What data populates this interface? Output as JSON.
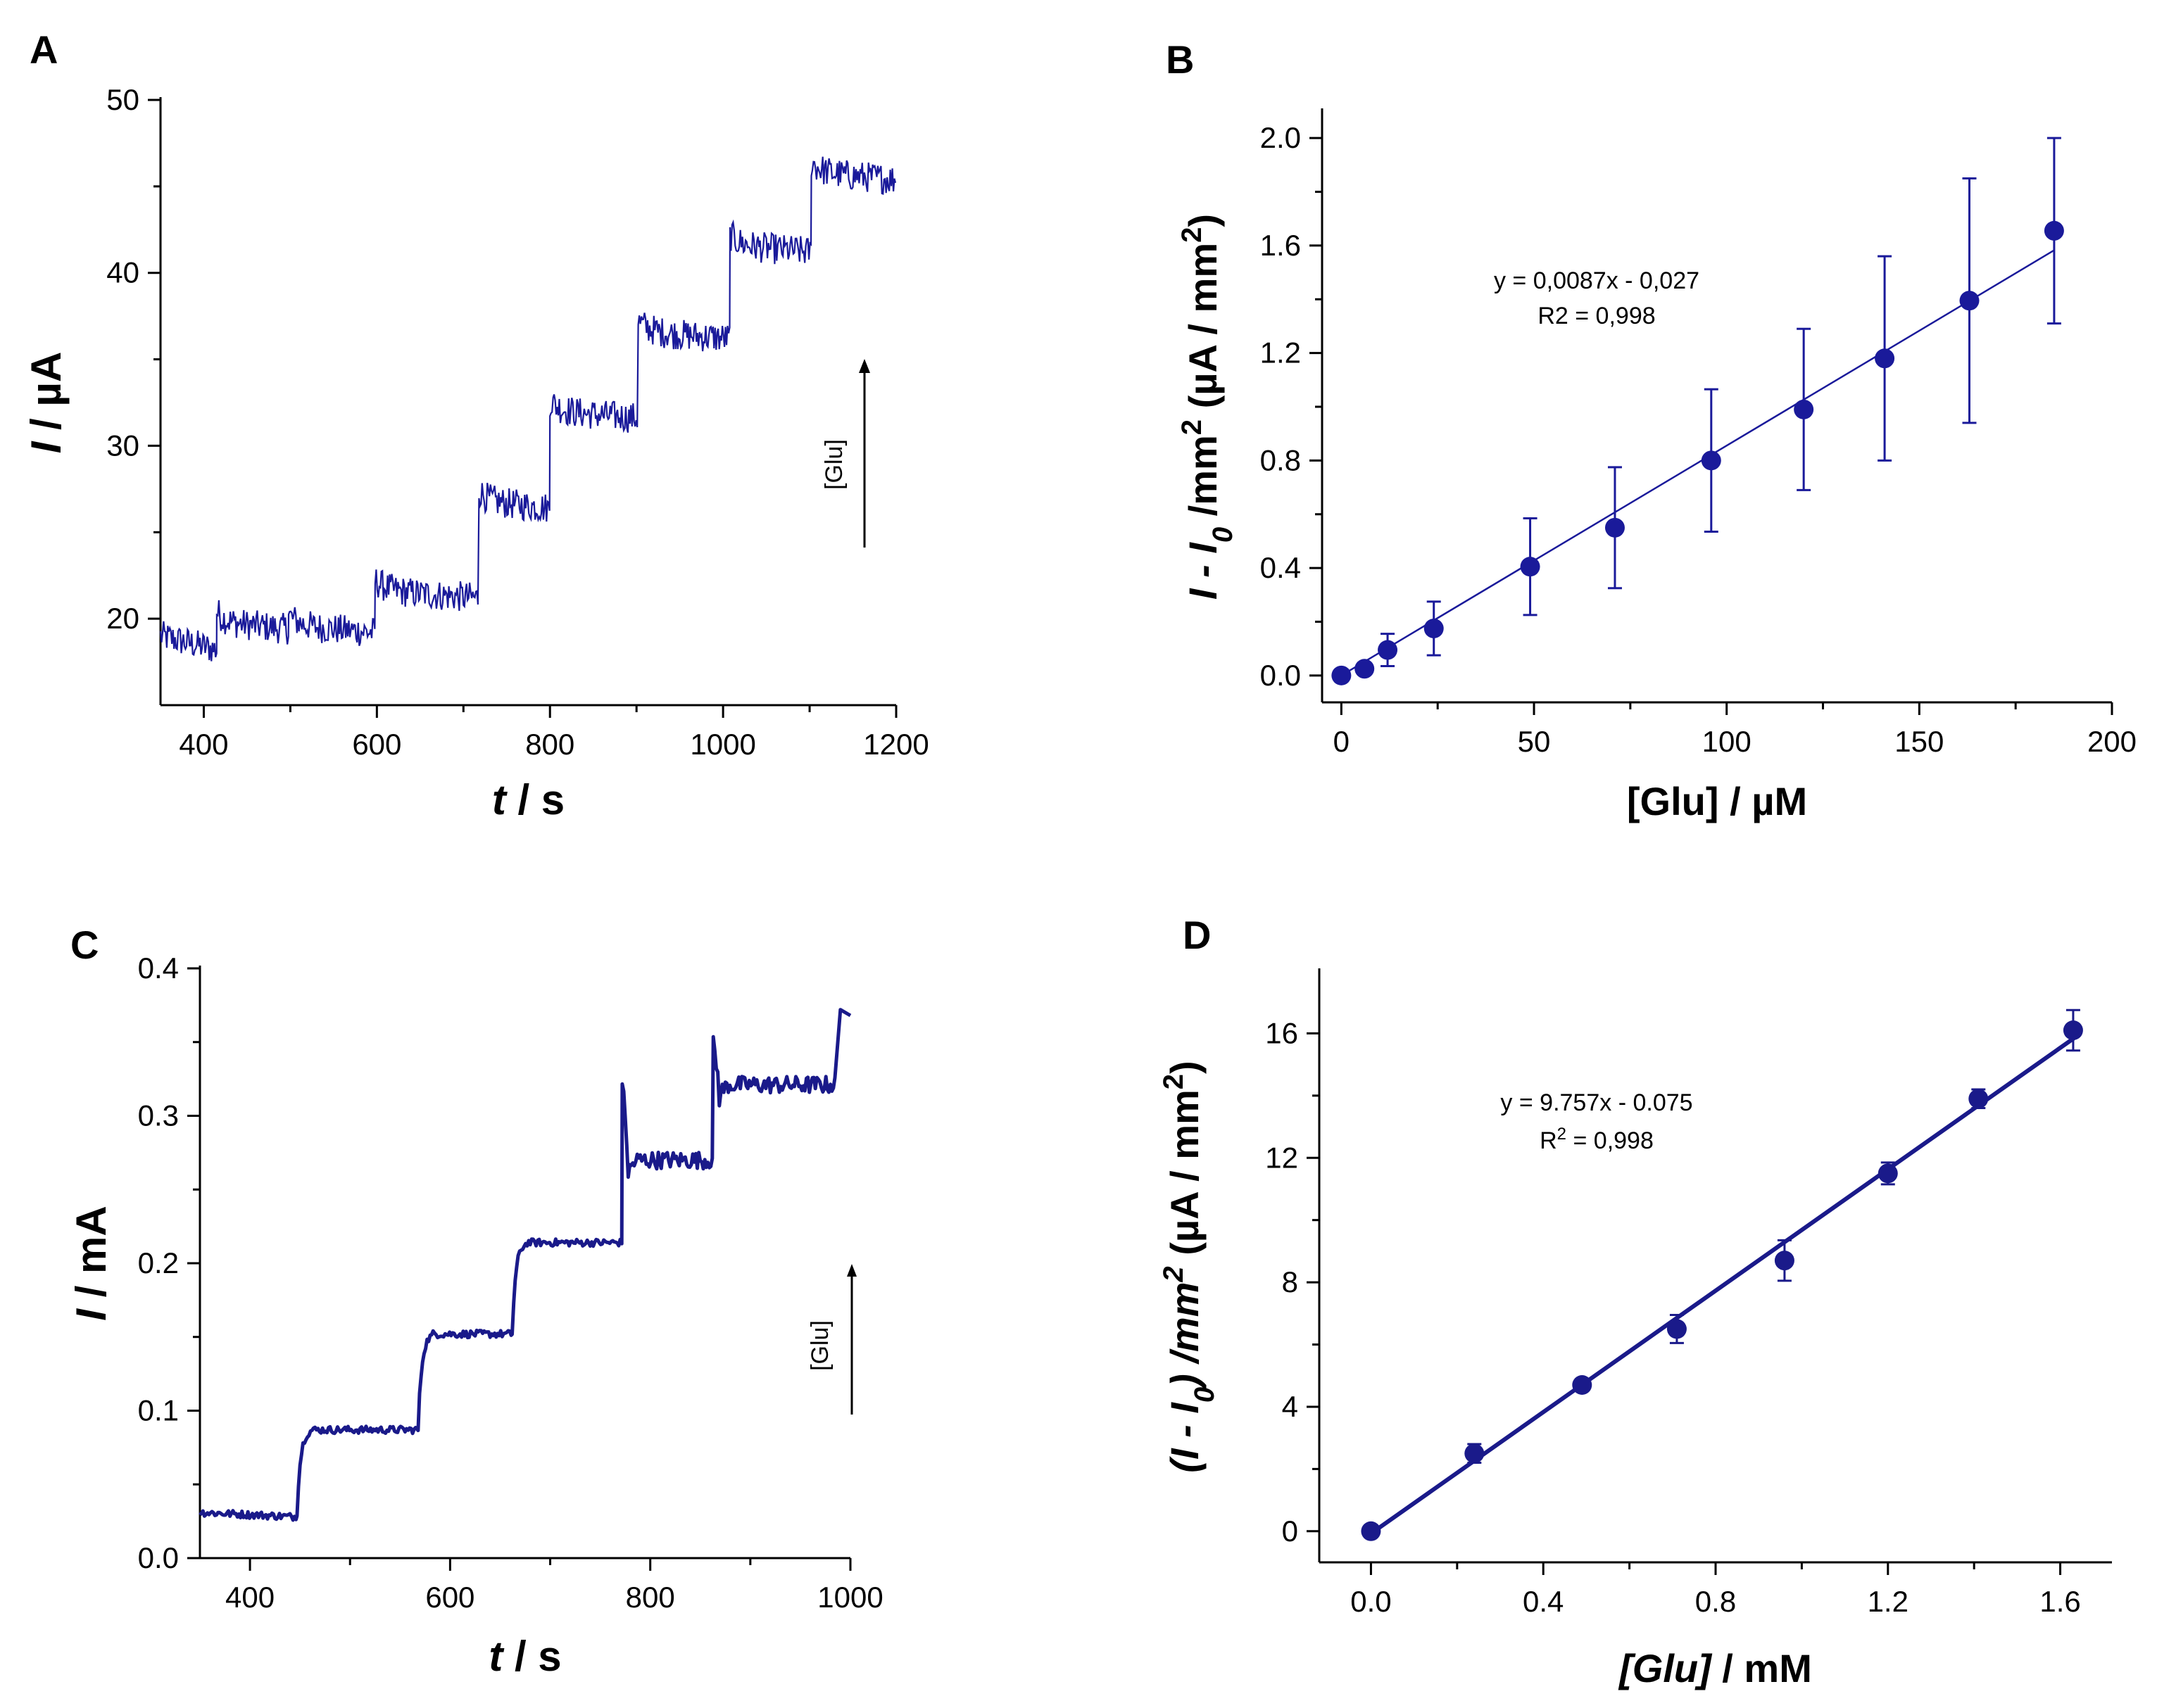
{
  "chart_data": [
    {
      "panel": "A",
      "type": "line",
      "xlabel_italic": "t",
      "xlabel_rest": " / s",
      "ylabel_italic": "I",
      "ylabel_rest": " / µA",
      "xlim": [
        350,
        1200
      ],
      "ylim": [
        15,
        50
      ],
      "xticks": [
        400,
        600,
        800,
        1000,
        1200
      ],
      "yticks": [
        20,
        30,
        40,
        50
      ],
      "color": "#1a1a9a",
      "arrow_label": "[Glu]",
      "steps": [
        {
          "t": 350,
          "level": 19.0
        },
        {
          "t": 415,
          "level": 19.8
        },
        {
          "t": 498,
          "level": 19.6
        },
        {
          "t": 598,
          "level": 21.6
        },
        {
          "t": 718,
          "level": 26.8
        },
        {
          "t": 800,
          "level": 32.0
        },
        {
          "t": 902,
          "level": 36.6
        },
        {
          "t": 1008,
          "level": 41.6
        },
        {
          "t": 1102,
          "level": 45.8
        },
        {
          "t": 1200,
          "level": 45.8
        }
      ]
    },
    {
      "panel": "B",
      "type": "scatter",
      "xlabel": "[Glu] / µM",
      "ylabel_html": "I - I0 /mm2 (µA / mm2)",
      "xlim": [
        -5,
        200
      ],
      "ylim": [
        -0.1,
        2.1
      ],
      "xticks": [
        0,
        50,
        100,
        150,
        200
      ],
      "yticks": [
        0.0,
        0.4,
        0.8,
        1.2,
        1.6,
        2.0
      ],
      "ytick_labels": [
        "0.0",
        "0.4",
        "0.8",
        "1.2",
        "1.6",
        "2.0"
      ],
      "color": "#1a1a9a",
      "points": [
        {
          "x": 0,
          "y": 0.0,
          "err": 0.0
        },
        {
          "x": 6,
          "y": 0.025,
          "err": 0.02
        },
        {
          "x": 12,
          "y": 0.095,
          "err": 0.06
        },
        {
          "x": 24,
          "y": 0.175,
          "err": 0.1
        },
        {
          "x": 49,
          "y": 0.405,
          "err": 0.18
        },
        {
          "x": 71,
          "y": 0.55,
          "err": 0.225
        },
        {
          "x": 96,
          "y": 0.8,
          "err": 0.265
        },
        {
          "x": 120,
          "y": 0.99,
          "err": 0.3
        },
        {
          "x": 141,
          "y": 1.18,
          "err": 0.38
        },
        {
          "x": 163,
          "y": 1.395,
          "err": 0.455
        },
        {
          "x": 185,
          "y": 1.655,
          "err": 0.345
        }
      ],
      "fit": {
        "slope": 0.0087,
        "intercept": -0.027,
        "x_start": 0,
        "x_end": 185
      },
      "equation": "y = 0,0087x - 0,027",
      "r2_text": "R2 = 0,998"
    },
    {
      "panel": "C",
      "type": "line",
      "xlabel_italic": "t",
      "xlabel_rest": " / s",
      "ylabel_italic": "I",
      "ylabel_rest": " / mA",
      "xlim": [
        350,
        1000
      ],
      "ylim": [
        0.0,
        0.4
      ],
      "xticks": [
        400,
        600,
        800,
        1000
      ],
      "yticks": [
        0.0,
        0.1,
        0.2,
        0.3,
        0.4
      ],
      "ytick_labels": [
        "0.0",
        "0.1",
        "0.2",
        "0.3",
        "0.4"
      ],
      "color": "#1a1a8a",
      "arrow_label": "[Glu]",
      "steps": [
        {
          "t": 350,
          "level": 0.031,
          "spike": 0
        },
        {
          "t": 447,
          "level": 0.087,
          "spike": 0
        },
        {
          "t": 568,
          "level": 0.152,
          "spike": 0
        },
        {
          "t": 662,
          "level": 0.214,
          "spike": 0
        },
        {
          "t": 772,
          "level": 0.27,
          "spike": 0.325
        },
        {
          "t": 863,
          "level": 0.321,
          "spike": 0.348
        },
        {
          "t": 985,
          "level": 0.37,
          "spike": 0
        }
      ]
    },
    {
      "panel": "D",
      "type": "scatter",
      "xlabel": "[Glu] / mM",
      "ylabel": "(I - I0) /mm2 (µA / mm2)",
      "xlim": [
        -0.12,
        1.72
      ],
      "ylim": [
        -1.0,
        18.0
      ],
      "xticks": [
        0.0,
        0.4,
        0.8,
        1.2,
        1.6
      ],
      "xtick_labels": [
        "0.0",
        "0.4",
        "0.8",
        "1.2",
        "1.6"
      ],
      "yticks": [
        0,
        4,
        8,
        12,
        16
      ],
      "color": "#1a1a8a",
      "points": [
        {
          "x": 0.0,
          "y": 0.0,
          "err": 0.0
        },
        {
          "x": 0.24,
          "y": 2.5,
          "err": 0.3
        },
        {
          "x": 0.49,
          "y": 4.7,
          "err": 0.15
        },
        {
          "x": 0.71,
          "y": 6.5,
          "err": 0.45
        },
        {
          "x": 0.96,
          "y": 8.7,
          "err": 0.65
        },
        {
          "x": 1.2,
          "y": 11.5,
          "err": 0.35
        },
        {
          "x": 1.41,
          "y": 13.9,
          "err": 0.3
        },
        {
          "x": 1.63,
          "y": 16.1,
          "err": 0.65
        }
      ],
      "fit": {
        "slope": 9.757,
        "intercept": -0.075,
        "x_start": 0,
        "x_end": 1.64
      },
      "equation": "y = 9.757x - 0.075",
      "r2_text": "R2 = 0,998"
    }
  ],
  "labels": {
    "a": "A",
    "b": "B",
    "c": "C",
    "d": "D"
  }
}
